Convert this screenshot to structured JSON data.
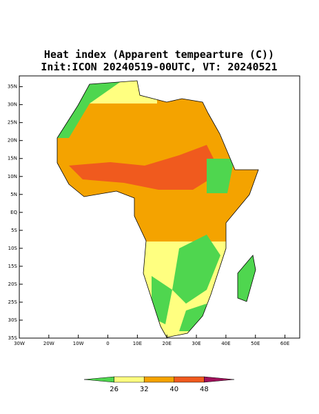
{
  "title": [
    "Heat index (Apparent tempearture (C))",
    "Init:ICON 20240519-00UTC, VT: 20240521"
  ],
  "map": {
    "xlim": [
      -30,
      65
    ],
    "ylim": [
      -35,
      38
    ],
    "xticks": [
      {
        "value": -30,
        "label": "30W"
      },
      {
        "value": -20,
        "label": "20W"
      },
      {
        "value": -10,
        "label": "10W"
      },
      0,
      {
        "value": 10,
        "label": "10E"
      },
      {
        "value": 20,
        "label": "20E"
      },
      {
        "value": 30,
        "label": "30E"
      },
      {
        "value": 40,
        "label": "40E"
      },
      {
        "value": 50,
        "label": "50E"
      },
      {
        "value": 60,
        "label": "60E"
      }
    ],
    "yticks": [
      {
        "value": -35,
        "label": "35S"
      },
      {
        "value": -30,
        "label": "30S"
      },
      {
        "value": -25,
        "label": "25S"
      },
      {
        "value": -20,
        "label": "20S"
      },
      {
        "value": -15,
        "label": "15S"
      },
      {
        "value": -10,
        "label": "10S"
      },
      {
        "value": -5,
        "label": "5S"
      },
      {
        "value": 0,
        "label": "EQ"
      },
      {
        "value": 5,
        "label": "5N"
      },
      {
        "value": 10,
        "label": "10N"
      },
      {
        "value": 15,
        "label": "15N"
      },
      {
        "value": 20,
        "label": "20N"
      },
      {
        "value": 25,
        "label": "25N"
      },
      {
        "value": 30,
        "label": "30N"
      },
      {
        "value": 35,
        "label": "35N"
      }
    ]
  },
  "colorbar": {
    "levels": [
      26,
      32,
      40,
      48
    ],
    "colors": [
      "#4fd64f",
      "#ffff80",
      "#f4a300",
      "#f05a1e",
      "#a0105a"
    ]
  }
}
